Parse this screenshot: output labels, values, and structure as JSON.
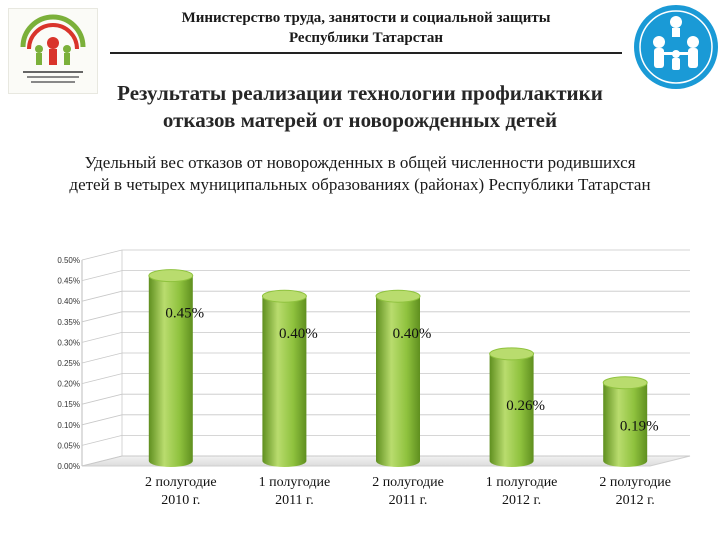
{
  "header": {
    "ministry_line1": "Министерство труда, занятости и социальной защиты",
    "ministry_line2": "Республики Татарстан"
  },
  "slide": {
    "title_line1": "Результаты реализации технологии профилактики",
    "title_line2": "отказов матерей от новорожденных детей",
    "subtitle_line1": "Удельный вес отказов от новорожденных в общей численности родившихся",
    "subtitle_line2": "детей в четырех муниципальных образованиях (районах) Республики Татарстан"
  },
  "colors": {
    "bar_light": "#b9dc6e",
    "bar_mid": "#8fc23e",
    "bar_dark": "#5f8f1f",
    "grid": "#c8c8c8",
    "accent_blue": "#1a9ad6"
  },
  "chart_data": {
    "type": "bar",
    "categories": [
      [
        "2 полугодие",
        "2010 г."
      ],
      [
        "1 полугодие",
        "2011 г."
      ],
      [
        "2 полугодие",
        "2011 г."
      ],
      [
        "1 полугодие",
        "2012 г."
      ],
      [
        "2 полугодие",
        "2012 г."
      ]
    ],
    "values": [
      0.45,
      0.4,
      0.4,
      0.26,
      0.19
    ],
    "data_labels": [
      "0.45%",
      "0.40%",
      "0.40%",
      "0.26%",
      "0.19%"
    ],
    "y_ticks": [
      "0.00%",
      "0.05%",
      "0.10%",
      "0.15%",
      "0.20%",
      "0.25%",
      "0.30%",
      "0.35%",
      "0.40%",
      "0.45%",
      "0.50%"
    ],
    "ylim": [
      0,
      0.5
    ],
    "grid": true,
    "legend": "none"
  }
}
